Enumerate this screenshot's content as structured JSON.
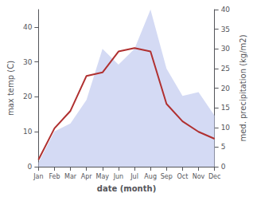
{
  "chart_data": {
    "type": "line",
    "categories": [
      "Jan",
      "Feb",
      "Mar",
      "Apr",
      "May",
      "Jun",
      "Jul",
      "Aug",
      "Sep",
      "Oct",
      "Nov",
      "Dec"
    ],
    "series": [
      {
        "type": "area",
        "color": "#c5cdf0",
        "axis": "y2",
        "values": [
          1,
          9,
          11,
          17,
          30,
          26,
          30,
          40,
          25,
          18,
          19,
          13
        ]
      },
      {
        "type": "line",
        "color": "#b03030",
        "axis": "y",
        "values": [
          2,
          11,
          16,
          26,
          27,
          33,
          34,
          33,
          18,
          13,
          10,
          8
        ]
      }
    ],
    "xlabel": "date (month)",
    "ylabel": "max temp (C)",
    "y2label": "med. precipitation (kg/m2)",
    "ylim": [
      0,
      45
    ],
    "yticks": [
      0,
      10,
      20,
      30,
      40
    ],
    "y2lim": [
      0,
      40
    ],
    "y2ticks": [
      0,
      5,
      10,
      15,
      20,
      25,
      30,
      35,
      40
    ],
    "grid": false
  }
}
